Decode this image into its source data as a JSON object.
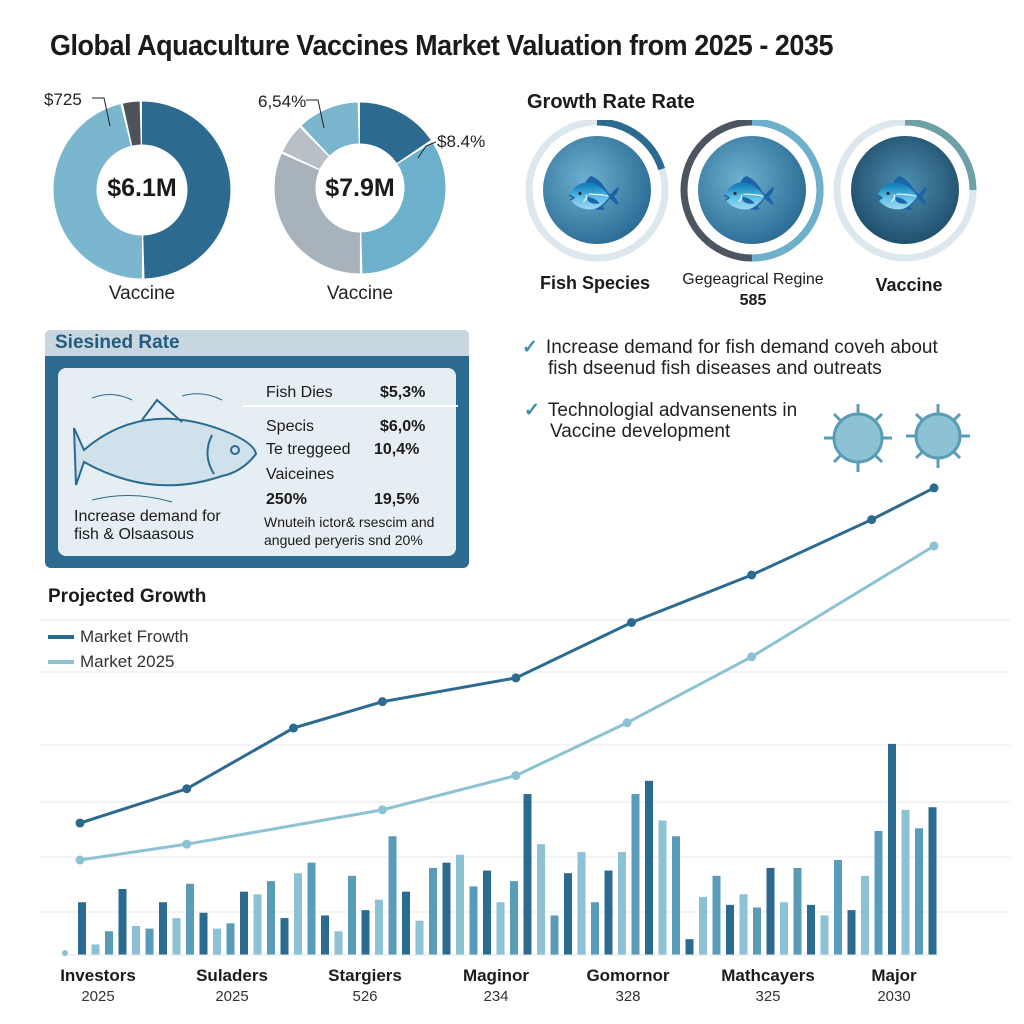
{
  "title": "Global Aquaculture Vaccines Market Valuation from 2025 - 2035",
  "donuts": [
    {
      "center": "$6.1M",
      "label": "Vaccine",
      "callouts": [
        "$725"
      ],
      "segments": [
        {
          "share": 50,
          "color": "#2d6a8f"
        },
        {
          "share": 46.5,
          "color": "#7bb6cf"
        },
        {
          "share": 3.5,
          "color": "#4d5358"
        }
      ]
    },
    {
      "center": "$7.9M",
      "label": "Vaccine",
      "callouts": [
        "6,54%",
        "$8.4%"
      ],
      "segments": [
        {
          "share": 16,
          "color": "#2d6a8f"
        },
        {
          "share": 34,
          "color": "#6cb0cc"
        },
        {
          "share": 32,
          "color": "#a8b2ba"
        },
        {
          "share": 6,
          "color": "#b8c0c6"
        },
        {
          "share": 12,
          "color": "#7bb6cf"
        }
      ]
    }
  ],
  "growth": {
    "title": "Growth Rate Rate",
    "items": [
      {
        "label": "Fish Species",
        "sub": "",
        "progress": 0.2,
        "color": "#2d6a8f"
      },
      {
        "label": "Gegeagrical Regine",
        "sub": "585",
        "progress": 0.5,
        "color": "#6cb0cc"
      },
      {
        "label": "Vaccine",
        "sub": "",
        "progress": 0.25,
        "color": "#6ea0a8"
      }
    ]
  },
  "panel": {
    "title": "Siesined Rate",
    "caption": [
      "Increase demand for",
      "fish & Olsaasous"
    ],
    "rows": [
      {
        "label": "Fish Dies",
        "value": "$5,3%"
      },
      {
        "label": "Specis",
        "value": "$6,0%"
      },
      {
        "label": "Te treggeed",
        "value": "10,4%"
      },
      {
        "label": "Vaiceines",
        "value": ""
      },
      {
        "label": "250%",
        "value": "19,5%"
      }
    ],
    "note": [
      "Wnuteih ictor& rsescim and",
      "angued peryeris snd 20%"
    ]
  },
  "bullets": [
    [
      "Increase demand for fish demand coveh about",
      "fish dseenud fish diseases and outreats"
    ],
    [
      "Technologial advansenents in",
      "Vaccine development"
    ]
  ],
  "colors": {
    "dark": "#2d6a8f",
    "light": "#8cc2d4",
    "mid": "#5a9bb8"
  },
  "chart_data": {
    "type": "line",
    "title": "Projected Growth",
    "legend_position": "top-left",
    "ylim": [
      0,
      180
    ],
    "series": [
      {
        "name": "Market Frowth",
        "color": "#2d6a8f",
        "x": [
          0,
          1.2,
          2.4,
          3.4,
          4.9,
          6.2,
          7.55,
          8.9,
          9.6
        ],
        "values": [
          50,
          63,
          86,
          96,
          105,
          126,
          144,
          165,
          177
        ]
      },
      {
        "name": "Market 2025",
        "color": "#8cc2d4",
        "x": [
          0,
          1.2,
          3.4,
          4.9,
          6.15,
          7.55,
          9.6
        ],
        "values": [
          36,
          42,
          55,
          68,
          88,
          113,
          155
        ]
      }
    ],
    "bars": [
      20,
      4,
      9,
      25,
      11,
      10,
      20,
      14,
      27,
      16,
      10,
      12,
      24,
      23,
      28,
      14,
      31,
      35,
      15,
      9,
      30,
      17,
      21,
      45,
      24,
      13,
      33,
      35,
      38,
      26,
      32,
      20,
      28,
      61,
      42,
      15,
      31,
      39,
      20,
      32,
      39,
      61,
      66,
      51,
      45,
      6,
      22,
      30,
      19,
      23,
      18,
      33,
      20,
      33,
      19,
      15,
      36,
      17,
      30,
      47,
      80,
      55,
      48,
      56
    ],
    "categories": [
      {
        "label": "Investors",
        "year": "2025"
      },
      {
        "label": "Suladers",
        "year": "2025"
      },
      {
        "label": "Stargiers",
        "year": "526"
      },
      {
        "label": "Maginor",
        "year": "234"
      },
      {
        "label": "Gomornor",
        "year": "328"
      },
      {
        "label": "Mathcayers",
        "year": "325"
      },
      {
        "label": "Major",
        "year": "2030"
      }
    ]
  }
}
